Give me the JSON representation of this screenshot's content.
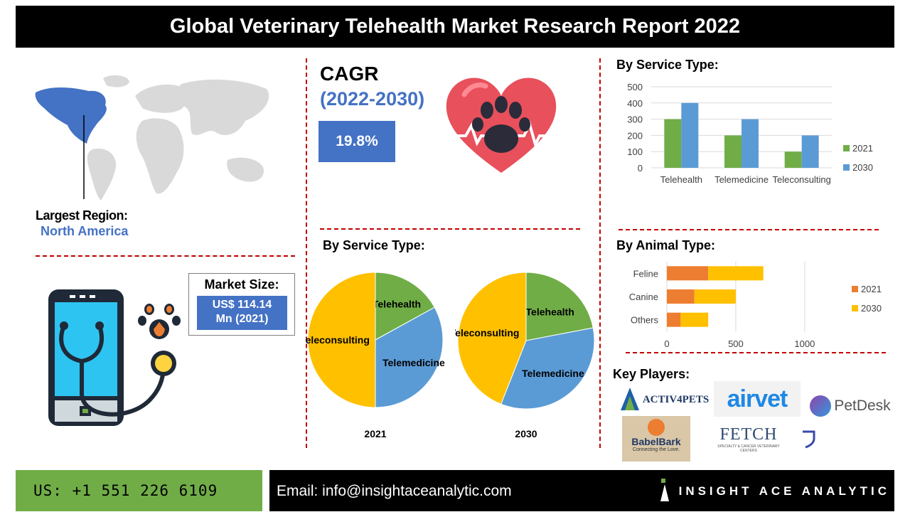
{
  "header": {
    "title": "Global Veterinary Telehealth Market Research Report 2022"
  },
  "region": {
    "label": "Largest Region:",
    "value": "North America"
  },
  "cagr": {
    "label": "CAGR",
    "period": "(2022-2030)",
    "value": "19.8%"
  },
  "market_size": {
    "label": "Market Size:",
    "value_line1": "US$ 114.14",
    "value_line2": "Mn (2021)"
  },
  "sections": {
    "service_type_bar": "By Service Type:",
    "service_type_pie": "By Service Type:",
    "animal_type": "By Animal Type:",
    "key_players": "Key Players:"
  },
  "key_players": {
    "activ4pets": "ACTIV4PETS",
    "airvet": "airvet",
    "petdesk": "PetDesk",
    "babelbark": "BabelBark",
    "babelbark_tagline": "Connecting the Love.",
    "fetch": "FETCH",
    "fetch_tagline": "SPECIALTY & CANCER VETERINARY CENTERS"
  },
  "footer": {
    "phone": "US: +1 551 226 6109",
    "email": "Email: info@insightaceanalytic.com",
    "brand": "INSIGHT ACE ANALYTIC"
  },
  "colors": {
    "green": "#70ad47",
    "blue": "#5b9bd5",
    "orange": "#ed7d31",
    "yellow": "#ffc000",
    "accent_blue": "#4472c4",
    "divider_red": "#c00000"
  },
  "chart_data": [
    {
      "id": "service_type_bar",
      "type": "bar",
      "categories": [
        "Telehealth",
        "Telemedicine",
        "Teleconsulting"
      ],
      "series": [
        {
          "name": "2021",
          "values": [
            300,
            200,
            100
          ],
          "color": "#70ad47"
        },
        {
          "name": "2030",
          "values": [
            400,
            300,
            200
          ],
          "color": "#5b9bd5"
        }
      ],
      "ylim": [
        0,
        500
      ],
      "yticks": [
        0,
        100,
        200,
        300,
        400,
        500
      ],
      "legend": "right",
      "grid": true
    },
    {
      "id": "animal_type_bar",
      "type": "bar",
      "orientation": "horizontal",
      "stacked": true,
      "categories": [
        "Feline",
        "Canine",
        "Others"
      ],
      "series": [
        {
          "name": "2021",
          "values": [
            300,
            200,
            100
          ],
          "color": "#ed7d31"
        },
        {
          "name": "2030",
          "values": [
            400,
            300,
            200
          ],
          "color": "#ffc000"
        }
      ],
      "xlim": [
        0,
        1300
      ],
      "xticks": [
        0,
        500,
        1000
      ],
      "legend": "right",
      "grid": true
    },
    {
      "id": "pie_2021",
      "type": "pie",
      "title": "2021",
      "labels": [
        "Telehealth",
        "Telemedicine",
        "Teleconsulting"
      ],
      "values": [
        17,
        33,
        50
      ],
      "colors": [
        "#70ad47",
        "#5b9bd5",
        "#ffc000"
      ]
    },
    {
      "id": "pie_2030",
      "type": "pie",
      "title": "2030",
      "labels": [
        "Telehealth",
        "Telemedicine",
        "Teleconsulting"
      ],
      "values": [
        22,
        34,
        44
      ],
      "colors": [
        "#70ad47",
        "#5b9bd5",
        "#ffc000"
      ]
    }
  ]
}
